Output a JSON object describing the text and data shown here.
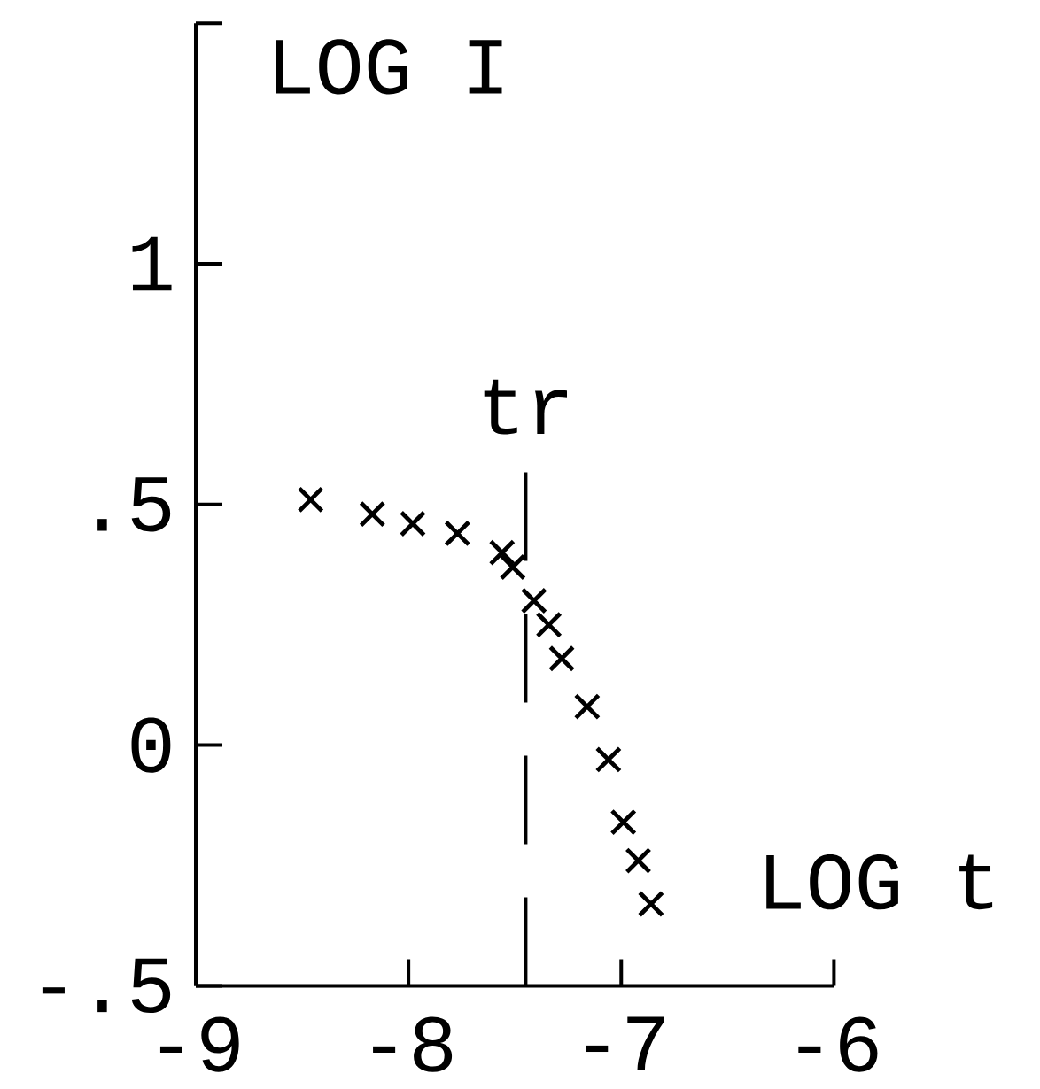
{
  "chart_data": {
    "type": "scatter",
    "xlabel": "LOG t",
    "ylabel": "LOG I",
    "color": "#000000",
    "marker": "cross",
    "x": [
      -8.46,
      -8.17,
      -7.98,
      -7.77,
      -7.56,
      -7.51,
      -7.41,
      -7.34,
      -7.28,
      -7.16,
      -7.06,
      -6.99,
      -6.92,
      -6.86
    ],
    "values": [
      0.51,
      0.48,
      0.46,
      0.44,
      0.4,
      0.37,
      0.3,
      0.25,
      0.18,
      0.08,
      -0.03,
      -0.16,
      -0.24,
      -0.33
    ],
    "xlim": [
      -9,
      -6
    ],
    "ylim": [
      -0.5,
      1.5
    ],
    "xticks": [
      -9,
      -8,
      -7,
      -6
    ],
    "yticks": [
      {
        "value": -0.5,
        "label": "-.5"
      },
      0,
      {
        "value": 0.5,
        "label": ".5"
      },
      1,
      {
        "value": 1.5,
        "label": null
      }
    ],
    "ref_lines": [
      {
        "axis": "x",
        "value": -7.45,
        "label": "tr",
        "line_style": "dashed"
      }
    ]
  }
}
